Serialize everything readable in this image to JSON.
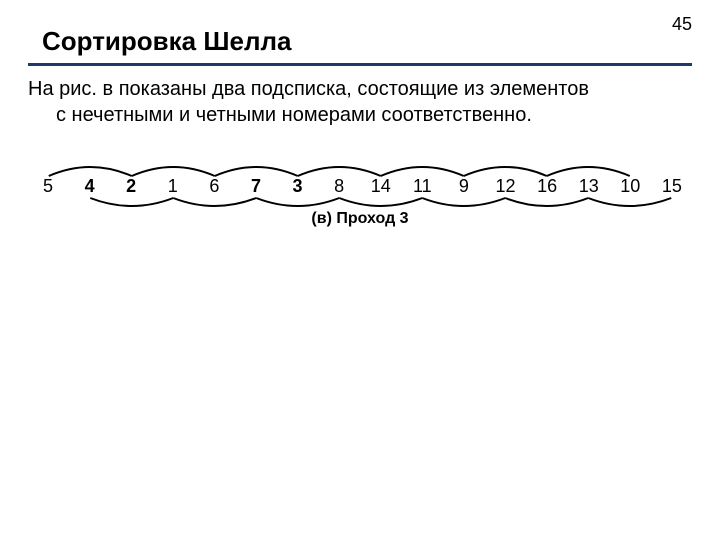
{
  "page_number": "45",
  "title": "Сортировка Шелла",
  "rule_color": "#1f3a66",
  "body_line1": "На рис. в показаны два подсписка, состоящие из элементов",
  "body_line2": "с нечетными и четными номерами соответственно.",
  "figure": {
    "numbers": [
      "5",
      "4",
      "2",
      "1",
      "6",
      "7",
      "3",
      "8",
      "14",
      "11",
      "9",
      "12",
      "16",
      "13",
      "10",
      "15"
    ],
    "bold_flags": [
      false,
      true,
      true,
      false,
      false,
      true,
      true,
      false,
      false,
      false,
      false,
      false,
      false,
      false,
      false,
      false
    ],
    "caption": "(в) Проход 3",
    "arc_stroke": "#000000",
    "arc_stroke_width": 2
  }
}
